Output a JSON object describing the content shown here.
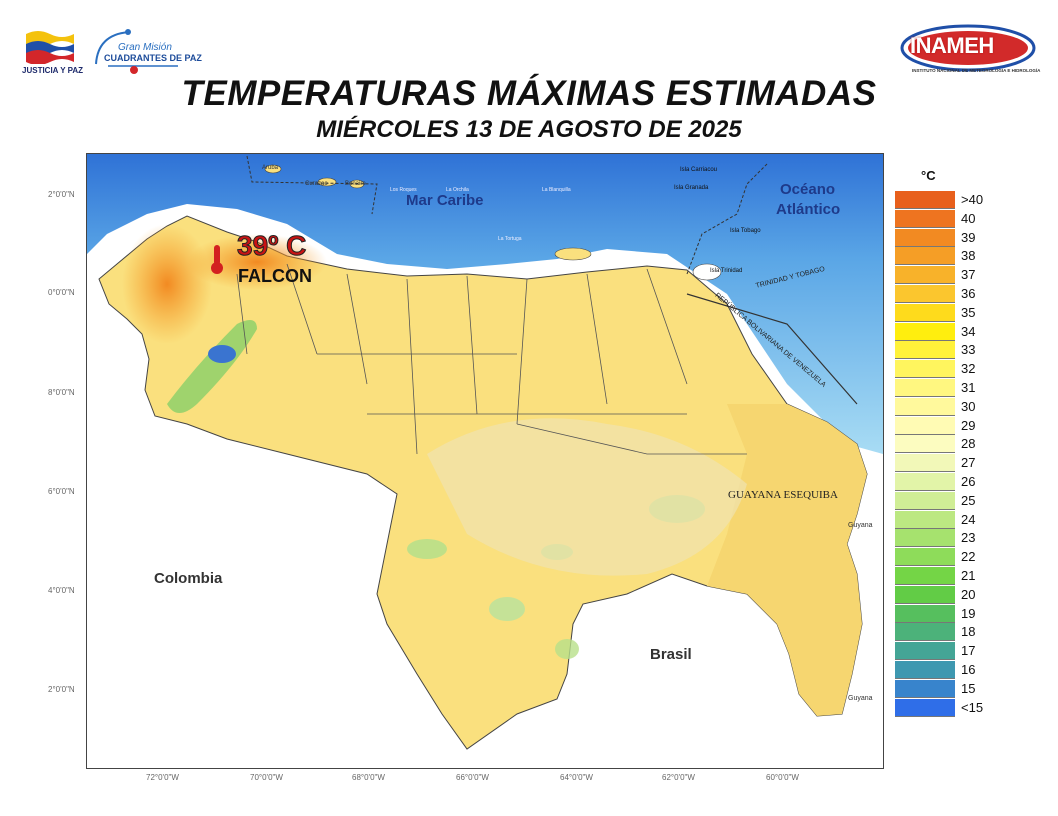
{
  "header": {
    "title": "TEMPERATURAS MÁXIMAS ESTIMADAS",
    "subtitle": "MIÉRCOLES 13 DE AGOSTO DE 2025"
  },
  "logos": {
    "left_text": "JUSTICIA Y PAZ",
    "mision_line1": "Gran Misión",
    "mision_line2": "CUADRANTES DE PAZ",
    "inameh_name": "INAMEH",
    "inameh_sub": "INSTITUTO NACIONAL DE METEOROLOGÍA E HIDROLOGÍA"
  },
  "map": {
    "lat_ticks": [
      "2°0'0\"N",
      "0°0'0\"N",
      "8°0'0\"N",
      "6°0'0\"N",
      "4°0'0\"N",
      "2°0'0\"N"
    ],
    "lon_ticks": [
      "72°0'0\"W",
      "70°0'0\"W",
      "68°0'0\"W",
      "66°0'0\"W",
      "64°0'0\"W",
      "62°0'0\"W",
      "60°0'0\"W"
    ],
    "places": {
      "mar_caribe": "Mar Caribe",
      "oceano_1": "Océano",
      "oceano_2": "Atlántico",
      "colombia": "Colombia",
      "brasil": "Brasil",
      "guayana_esequiba": "GUAYANA ESEQUIBA",
      "guyana_1": "Guyana",
      "guyana_2": "Guyana",
      "trinidad": "TRINIDAD Y TOBAGO",
      "rep_bolivariana": "REPÚBLICA BOLIVARIANA DE VENEZUELA",
      "aruba": "Aruba",
      "curazao": "Curazao",
      "bonaire": "Bonaire",
      "los_roques": "Los Roques",
      "la_orchila": "La Orchila",
      "la_blanquilla": "La Blanquilla",
      "la_tortuga": "La Tortuga",
      "carriacou": "Isla Carriacou",
      "granada": "Isla Granada",
      "tobago": "Isla Tobago",
      "isla_trinidad": "Isla Trinidad"
    },
    "highlight": {
      "temperature": "39º C",
      "state": "FALCON"
    }
  },
  "legend": {
    "unit": "°C",
    "classes": [
      {
        "label": ">40",
        "color": "#e8601c"
      },
      {
        "label": "40",
        "color": "#ee7420"
      },
      {
        "label": "39",
        "color": "#f28a22"
      },
      {
        "label": "38",
        "color": "#f59e26"
      },
      {
        "label": "37",
        "color": "#f8b22a"
      },
      {
        "label": "36",
        "color": "#fbc62e"
      },
      {
        "label": "35",
        "color": "#fedb1c"
      },
      {
        "label": "34",
        "color": "#ffee0e"
      },
      {
        "label": "33",
        "color": "#fff23a"
      },
      {
        "label": "32",
        "color": "#fff55e"
      },
      {
        "label": "31",
        "color": "#fff780"
      },
      {
        "label": "30",
        "color": "#fff99c"
      },
      {
        "label": "29",
        "color": "#fffbb4"
      },
      {
        "label": "28",
        "color": "#fcfcc0"
      },
      {
        "label": "27",
        "color": "#f2f8b8"
      },
      {
        "label": "26",
        "color": "#e2f4a8"
      },
      {
        "label": "25",
        "color": "#d0ee96"
      },
      {
        "label": "24",
        "color": "#bce882"
      },
      {
        "label": "23",
        "color": "#a6e26e"
      },
      {
        "label": "22",
        "color": "#8edc5a"
      },
      {
        "label": "21",
        "color": "#74d546"
      },
      {
        "label": "20",
        "color": "#62cc46"
      },
      {
        "label": "19",
        "color": "#56bf5e"
      },
      {
        "label": "18",
        "color": "#4cb27a"
      },
      {
        "label": "17",
        "color": "#44a596"
      },
      {
        "label": "16",
        "color": "#3e98b0"
      },
      {
        "label": "15",
        "color": "#3884cc"
      },
      {
        "label": "<15",
        "color": "#2f6ee8"
      }
    ]
  }
}
